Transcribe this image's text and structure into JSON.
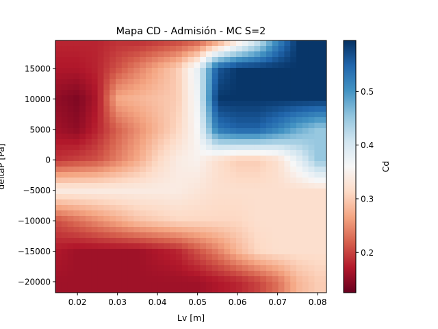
{
  "chart_data": {
    "type": "heatmap",
    "title": "Mapa CD - Admisión - MC S=2",
    "xlabel": "Lv [m]",
    "ylabel": "deltaP [Pa]",
    "colorbar_label": "Cd",
    "colormap": "RdBu",
    "xlim": [
      0.0145,
      0.0822
    ],
    "ylim": [
      -21800,
      19600
    ],
    "zlim": [
      0.125,
      0.595
    ],
    "x_ticks": [
      0.02,
      0.03,
      0.04,
      0.05,
      0.06,
      0.07,
      0.08
    ],
    "x_tick_labels": [
      "0.02",
      "0.03",
      "0.04",
      "0.05",
      "0.06",
      "0.07",
      "0.08"
    ],
    "y_ticks": [
      -20000,
      -15000,
      -10000,
      -5000,
      0,
      5000,
      10000,
      15000
    ],
    "y_tick_labels": [
      "−20000",
      "−15000",
      "−10000",
      "−5000",
      "0",
      "5000",
      "10000",
      "15000"
    ],
    "colorbar_ticks": [
      0.2,
      0.3,
      0.4,
      0.5
    ],
    "colorbar_tick_labels": [
      "0.2",
      "0.3",
      "0.4",
      "0.5"
    ],
    "grid_x": [
      0.015,
      0.02,
      0.025,
      0.03,
      0.035,
      0.04,
      0.045,
      0.05,
      0.055,
      0.06,
      0.065,
      0.07,
      0.075,
      0.08
    ],
    "grid_y": [
      -20000,
      -15000,
      -10000,
      -5000,
      0,
      5000,
      10000,
      15000,
      19000
    ],
    "z_values": [
      [
        0.16,
        0.16,
        0.16,
        0.16,
        0.16,
        0.16,
        0.16,
        0.16,
        0.17,
        0.18,
        0.2,
        0.23,
        0.28,
        0.3
      ],
      [
        0.17,
        0.16,
        0.16,
        0.16,
        0.16,
        0.17,
        0.18,
        0.21,
        0.24,
        0.28,
        0.31,
        0.32,
        0.32,
        0.32
      ],
      [
        0.21,
        0.23,
        0.25,
        0.27,
        0.29,
        0.3,
        0.31,
        0.31,
        0.31,
        0.31,
        0.32,
        0.32,
        0.32,
        0.32
      ],
      [
        0.34,
        0.34,
        0.34,
        0.34,
        0.34,
        0.34,
        0.34,
        0.33,
        0.32,
        0.32,
        0.32,
        0.32,
        0.32,
        0.32
      ],
      [
        0.19,
        0.2,
        0.21,
        0.24,
        0.27,
        0.31,
        0.34,
        0.35,
        0.32,
        0.3,
        0.3,
        0.32,
        0.38,
        0.45
      ],
      [
        0.16,
        0.15,
        0.18,
        0.22,
        0.25,
        0.28,
        0.31,
        0.36,
        0.53,
        0.55,
        0.55,
        0.52,
        0.48,
        0.45
      ],
      [
        0.15,
        0.14,
        0.17,
        0.27,
        0.28,
        0.29,
        0.3,
        0.37,
        0.59,
        0.59,
        0.59,
        0.59,
        0.59,
        0.59
      ],
      [
        0.17,
        0.17,
        0.18,
        0.21,
        0.24,
        0.27,
        0.3,
        0.38,
        0.56,
        0.59,
        0.59,
        0.59,
        0.59,
        0.59
      ],
      [
        0.18,
        0.18,
        0.18,
        0.19,
        0.19,
        0.2,
        0.21,
        0.23,
        0.28,
        0.35,
        0.42,
        0.52,
        0.59,
        0.59
      ]
    ]
  }
}
